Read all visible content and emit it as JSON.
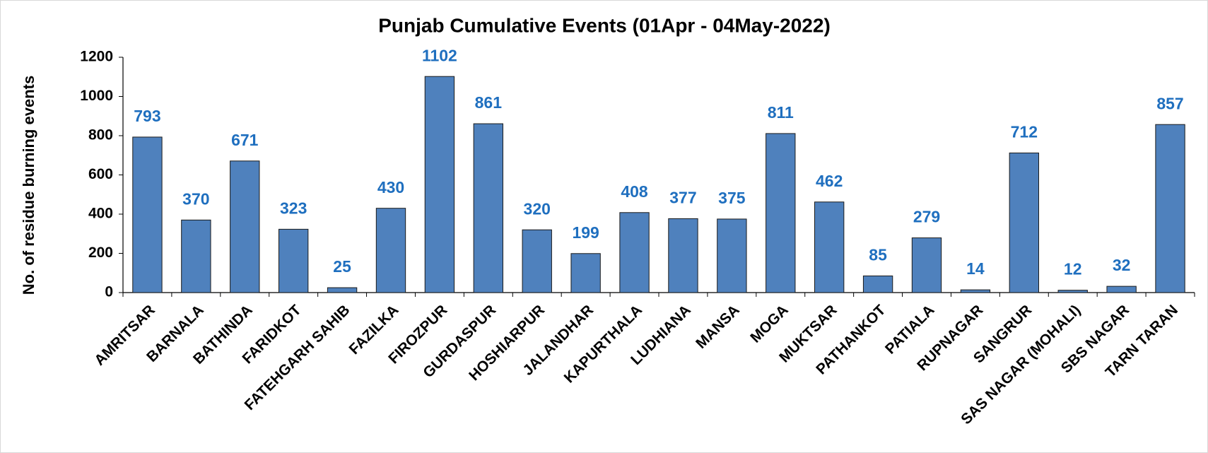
{
  "chart_data": {
    "type": "bar",
    "title": "Punjab Cumulative Events (01Apr - 04May-2022)",
    "y_label": "No. of residue burning events",
    "categories": [
      "AMRITSAR",
      "BARNALA",
      "BATHINDA",
      "FARIDKOT",
      "FATEHGARH SAHIB",
      "FAZILKA",
      "FIROZPUR",
      "GURDASPUR",
      "HOSHIARPUR",
      "JALANDHAR",
      "KAPURTHALA",
      "LUDHIANA",
      "MANSA",
      "MOGA",
      "MUKTSAR",
      "PATHANKOT",
      "PATIALA",
      "RUPNAGAR",
      "SANGRUR",
      "SAS NAGAR (MOHALI)",
      "SBS NAGAR",
      "TARN TARAN"
    ],
    "values": [
      793,
      370,
      671,
      323,
      25,
      430,
      1102,
      861,
      320,
      199,
      408,
      377,
      375,
      811,
      462,
      85,
      279,
      14,
      712,
      12,
      32,
      857
    ],
    "color": "#4f81bd",
    "label_color": "#1f6fbf",
    "ylim": [
      0,
      1200
    ],
    "yticks": [
      0,
      200,
      400,
      600,
      800,
      1000,
      1200
    ],
    "grid": false
  }
}
